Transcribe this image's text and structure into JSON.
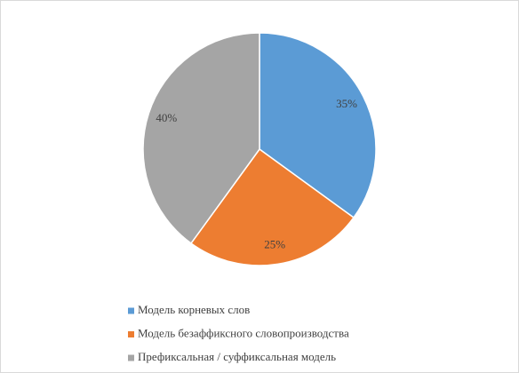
{
  "chart_data": {
    "type": "pie",
    "categories": [
      "Модель корневых слов",
      "Модель безаффиксного словопроизводства",
      "Префиксальная / суффиксальная модель"
    ],
    "values": [
      35,
      25,
      40
    ],
    "value_labels": [
      "35%",
      "25%",
      "40%"
    ],
    "colors": [
      "#5b9bd5",
      "#ed7d31",
      "#a5a5a5"
    ],
    "legend": "bottom"
  }
}
